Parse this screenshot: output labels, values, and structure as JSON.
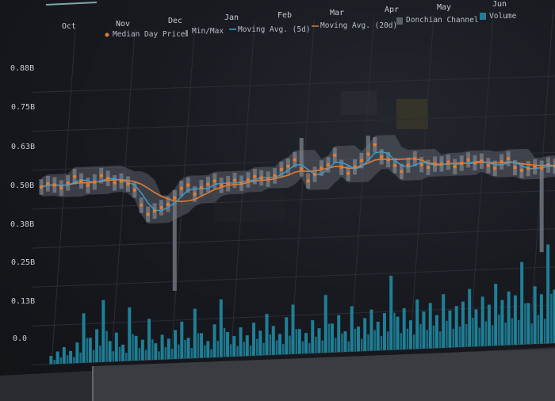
{
  "chart_data": {
    "type": "line",
    "months": [
      "Oct",
      "Nov",
      "Dec",
      "Jan",
      "Feb",
      "Mar",
      "Apr",
      "May",
      "Jun"
    ],
    "y_ticks": [
      "0.0",
      "0.13B",
      "0.25B",
      "0.38B",
      "0.50B",
      "0.63B",
      "0.75B",
      "0.88B"
    ],
    "ylim": [
      0,
      0.88
    ],
    "legend": {
      "median": "Median Day Price",
      "minmax": "Min/Max",
      "ma5": "Moving Avg. (5d)",
      "ma20": "Moving Avg. (20d)",
      "donchian": "Donchian Channel",
      "volume": "Volume"
    },
    "median_price": [
      0.57,
      0.58,
      0.575,
      0.565,
      0.58,
      0.6,
      0.585,
      0.57,
      0.58,
      0.6,
      0.59,
      0.575,
      0.58,
      0.57,
      0.55,
      0.5,
      0.47,
      0.48,
      0.49,
      0.5,
      0.52,
      0.55,
      0.56,
      0.53,
      0.55,
      0.56,
      0.57,
      0.555,
      0.56,
      0.57,
      0.56,
      0.57,
      0.58,
      0.575,
      0.57,
      0.58,
      0.6,
      0.61,
      0.63,
      0.6,
      0.56,
      0.58,
      0.6,
      0.61,
      0.64,
      0.6,
      0.58,
      0.6,
      0.62,
      0.64,
      0.67,
      0.63,
      0.62,
      0.6,
      0.58,
      0.6,
      0.62,
      0.6,
      0.59,
      0.6,
      0.6,
      0.605,
      0.59,
      0.6,
      0.61,
      0.6,
      0.605,
      0.59,
      0.58,
      0.6,
      0.61,
      0.58,
      0.57,
      0.575,
      0.58,
      0.575,
      0.585,
      0.58
    ],
    "volume": [
      0.02,
      0.03,
      0.04,
      0.03,
      0.05,
      0.12,
      0.06,
      0.08,
      0.15,
      0.05,
      0.07,
      0.04,
      0.13,
      0.06,
      0.05,
      0.1,
      0.04,
      0.06,
      0.05,
      0.07,
      0.09,
      0.05,
      0.12,
      0.06,
      0.04,
      0.08,
      0.14,
      0.06,
      0.05,
      0.07,
      0.05,
      0.08,
      0.06,
      0.1,
      0.07,
      0.05,
      0.09,
      0.12,
      0.06,
      0.05,
      0.08,
      0.06,
      0.14,
      0.07,
      0.09,
      0.05,
      0.11,
      0.06,
      0.08,
      0.1,
      0.07,
      0.09,
      0.18,
      0.08,
      0.1,
      0.07,
      0.12,
      0.09,
      0.11,
      0.08,
      0.13,
      0.09,
      0.1,
      0.11,
      0.14,
      0.09,
      0.12,
      0.1,
      0.15,
      0.11,
      0.13,
      0.12,
      0.2,
      0.1,
      0.14,
      0.12,
      0.24,
      0.13
    ]
  }
}
